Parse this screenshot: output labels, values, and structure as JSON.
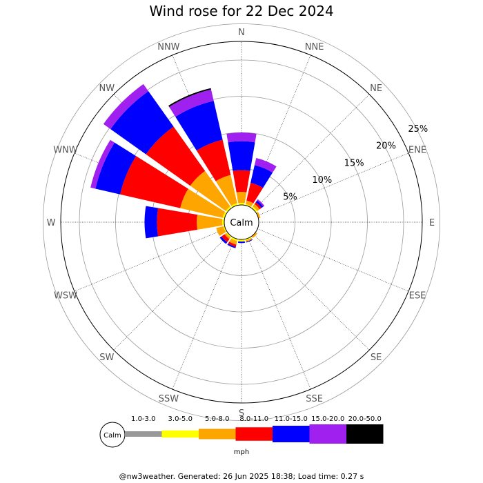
{
  "page": {
    "title": "Wind rose for 22 Dec 2024",
    "footer": "@nw3weather. Generated: 26 Jun 2025 18:38; Load time: 0.27 s"
  },
  "chart_data": {
    "type": "wind-rose",
    "title": "Wind rose for 22 Dec 2024",
    "directions": [
      "N",
      "NNE",
      "NE",
      "ENE",
      "E",
      "ESE",
      "SE",
      "SSE",
      "S",
      "SSW",
      "SW",
      "WSW",
      "W",
      "WNW",
      "NW",
      "NNW"
    ],
    "radial_ticks": [
      "5%",
      "10%",
      "15%",
      "20%",
      "25%"
    ],
    "radial_values": [
      5,
      10,
      15,
      20,
      25
    ],
    "calm_label": "Calm",
    "units": "mph",
    "bins": [
      {
        "label": "1.0-3.0",
        "color": "#999999"
      },
      {
        "label": "3.0-5.0",
        "color": "#ffff00"
      },
      {
        "label": "5.0-8.0",
        "color": "#ffa500"
      },
      {
        "label": "8.0-11.0",
        "color": "#ff0000"
      },
      {
        "label": "11.0-15.0",
        "color": "#0000ff"
      },
      {
        "label": "15.0-20.0",
        "color": "#a020f0"
      },
      {
        "label": "20.0-50.0",
        "color": "#000000"
      }
    ],
    "values": {
      "N": [
        0.0,
        0.3,
        1.5,
        3.0,
        4.0,
        1.2,
        0.0
      ],
      "NNE": [
        0.0,
        0.2,
        0.5,
        2.5,
        2.5,
        1.0,
        0.0
      ],
      "NE": [
        0.0,
        0.3,
        0.4,
        0.3,
        0.3,
        0.2,
        0.0
      ],
      "ENE": [
        0.0,
        0.0,
        0.3,
        0.0,
        0.0,
        0.0,
        0.0
      ],
      "E": [
        0.0,
        0.0,
        0.0,
        0.0,
        0.0,
        0.0,
        0.0
      ],
      "ESE": [
        0.0,
        0.0,
        0.0,
        0.0,
        0.0,
        0.0,
        0.0
      ],
      "SE": [
        0.0,
        0.0,
        0.3,
        0.0,
        0.0,
        0.0,
        0.0
      ],
      "SSE": [
        0.0,
        0.2,
        0.2,
        0.0,
        0.1,
        0.0,
        0.0
      ],
      "S": [
        0.0,
        0.3,
        0.0,
        0.0,
        0.2,
        0.0,
        0.0
      ],
      "SSW": [
        0.0,
        0.3,
        0.5,
        0.3,
        0.2,
        0.0,
        0.0
      ],
      "SW": [
        0.0,
        0.2,
        0.3,
        0.5,
        0.3,
        0.0,
        0.0
      ],
      "WSW": [
        0.0,
        0.2,
        1.0,
        0.0,
        0.0,
        0.0,
        0.0
      ],
      "W": [
        0.0,
        0.3,
        3.5,
        5.5,
        1.7,
        0.0,
        0.0
      ],
      "WNW": [
        0.0,
        0.3,
        6.0,
        8.5,
        3.5,
        0.7,
        0.0
      ],
      "NW": [
        0.0,
        0.3,
        6.0,
        7.5,
        6.0,
        1.2,
        0.0
      ],
      "NNW": [
        0.0,
        0.3,
        4.0,
        5.0,
        5.5,
        1.6,
        0.2
      ]
    }
  }
}
